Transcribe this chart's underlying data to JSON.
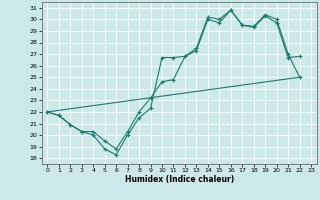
{
  "title": "",
  "xlabel": "Humidex (Indice chaleur)",
  "bg_color": "#cce8e8",
  "grid_color": "#ffffff",
  "line_color": "#1a7a6e",
  "xlim": [
    -0.5,
    23.5
  ],
  "ylim": [
    17.5,
    31.5
  ],
  "yticks": [
    18,
    19,
    20,
    21,
    22,
    23,
    24,
    25,
    26,
    27,
    28,
    29,
    30,
    31
  ],
  "xticks": [
    0,
    1,
    2,
    3,
    4,
    5,
    6,
    7,
    8,
    9,
    10,
    11,
    12,
    13,
    14,
    15,
    16,
    17,
    18,
    19,
    20,
    21,
    22,
    23
  ],
  "line1_x": [
    0,
    1,
    2,
    3,
    4,
    5,
    6,
    7,
    8,
    9,
    10,
    11,
    12,
    13,
    14,
    15,
    16,
    17,
    18,
    19,
    20,
    21,
    22
  ],
  "line1_y": [
    22.0,
    21.7,
    20.9,
    20.3,
    20.0,
    18.8,
    18.3,
    20.0,
    21.5,
    22.3,
    26.7,
    26.7,
    26.8,
    27.3,
    30.0,
    29.7,
    30.8,
    29.5,
    29.3,
    30.3,
    29.7,
    26.7,
    26.8
  ],
  "line2_x": [
    0,
    1,
    2,
    3,
    4,
    5,
    6,
    7,
    8,
    9,
    10,
    11,
    12,
    13,
    14,
    15,
    16,
    17,
    18,
    19,
    20,
    21,
    22
  ],
  "line2_y": [
    22.0,
    21.7,
    20.9,
    20.3,
    20.3,
    19.5,
    18.8,
    20.3,
    22.0,
    23.2,
    24.6,
    24.8,
    26.8,
    27.5,
    30.2,
    30.0,
    30.8,
    29.5,
    29.4,
    30.4,
    30.0,
    27.0,
    25.0
  ],
  "line3_x": [
    0,
    22
  ],
  "line3_y": [
    22.0,
    25.0
  ]
}
